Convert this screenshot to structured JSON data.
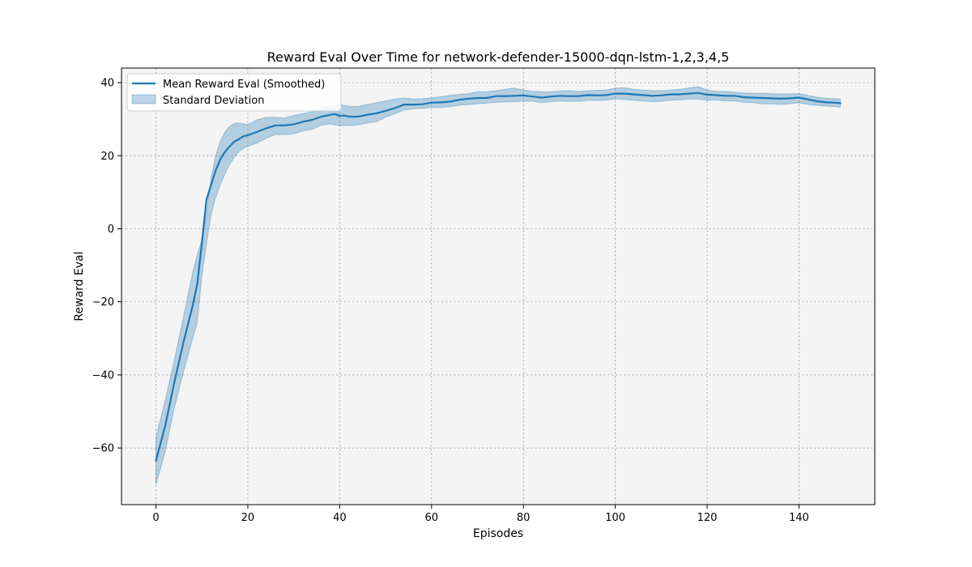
{
  "chart_data": {
    "type": "line",
    "title": "Reward Eval Over Time for network-defender-15000-dqn-lstm-1,2,3,4,5",
    "xlabel": "Episodes",
    "ylabel": "Reward Eval",
    "xlim": [
      -7.5,
      156.5
    ],
    "ylim": [
      -75.5,
      44
    ],
    "xticks": [
      0,
      20,
      40,
      60,
      80,
      100,
      120,
      140
    ],
    "yticks": [
      -60,
      -40,
      -20,
      0,
      20,
      40
    ],
    "grid": true,
    "legend_position": "top-left",
    "colors": {
      "line": "#1f77b4",
      "band": "#1f77b4",
      "plot_bg": "#f4f4f4",
      "grid": "#9a9a9a"
    },
    "series": [
      {
        "name": "Mean Reward Eval (Smoothed)",
        "kind": "line",
        "points": [
          [
            0,
            -63.5
          ],
          [
            2,
            -54
          ],
          [
            4,
            -42
          ],
          [
            6,
            -31
          ],
          [
            8,
            -21
          ],
          [
            9,
            -15
          ],
          [
            10,
            -4
          ],
          [
            11,
            8
          ],
          [
            12,
            12
          ],
          [
            13,
            16
          ],
          [
            14,
            19
          ],
          [
            15,
            21
          ],
          [
            16,
            22.5
          ],
          [
            17,
            23.8
          ],
          [
            18,
            24.5
          ],
          [
            19,
            25.3
          ],
          [
            20,
            25.6
          ],
          [
            22,
            26.5
          ],
          [
            24,
            27.5
          ],
          [
            26,
            28.3
          ],
          [
            28,
            28.3
          ],
          [
            30,
            28.6
          ],
          [
            32,
            29.3
          ],
          [
            34,
            29.8
          ],
          [
            36,
            30.7
          ],
          [
            38,
            31.2
          ],
          [
            39,
            31.4
          ],
          [
            40,
            30.9
          ],
          [
            41,
            31.0
          ],
          [
            42,
            30.7
          ],
          [
            44,
            30.7
          ],
          [
            46,
            31.2
          ],
          [
            48,
            31.6
          ],
          [
            50,
            32.3
          ],
          [
            52,
            33.0
          ],
          [
            54,
            34.0
          ],
          [
            56,
            34.0
          ],
          [
            58,
            34.1
          ],
          [
            60,
            34.5
          ],
          [
            62,
            34.6
          ],
          [
            64,
            34.8
          ],
          [
            66,
            35.3
          ],
          [
            68,
            35.6
          ],
          [
            70,
            35.8
          ],
          [
            72,
            35.8
          ],
          [
            74,
            36.3
          ],
          [
            76,
            36.3
          ],
          [
            78,
            36.4
          ],
          [
            80,
            36.5
          ],
          [
            82,
            36.2
          ],
          [
            84,
            35.9
          ],
          [
            86,
            36.2
          ],
          [
            88,
            36.4
          ],
          [
            90,
            36.3
          ],
          [
            92,
            36.3
          ],
          [
            94,
            36.6
          ],
          [
            96,
            36.5
          ],
          [
            98,
            36.6
          ],
          [
            100,
            37.0
          ],
          [
            102,
            37.0
          ],
          [
            104,
            36.8
          ],
          [
            106,
            36.6
          ],
          [
            108,
            36.4
          ],
          [
            110,
            36.5
          ],
          [
            112,
            36.8
          ],
          [
            114,
            36.8
          ],
          [
            116,
            37.0
          ],
          [
            118,
            37.2
          ],
          [
            120,
            36.7
          ],
          [
            122,
            36.6
          ],
          [
            124,
            36.4
          ],
          [
            126,
            36.4
          ],
          [
            128,
            36.0
          ],
          [
            130,
            35.9
          ],
          [
            132,
            35.8
          ],
          [
            134,
            35.7
          ],
          [
            136,
            35.6
          ],
          [
            138,
            35.7
          ],
          [
            140,
            35.9
          ],
          [
            142,
            35.4
          ],
          [
            144,
            34.9
          ],
          [
            146,
            34.6
          ],
          [
            148,
            34.5
          ],
          [
            149,
            34.4
          ]
        ]
      },
      {
        "name": "Standard Deviation",
        "kind": "band",
        "upper": [
          [
            0,
            -57
          ],
          [
            2,
            -47
          ],
          [
            4,
            -36
          ],
          [
            6,
            -24
          ],
          [
            8,
            -12
          ],
          [
            9,
            -7
          ],
          [
            10,
            -3
          ],
          [
            11,
            4
          ],
          [
            12,
            14
          ],
          [
            13,
            20
          ],
          [
            14,
            24
          ],
          [
            15,
            26.5
          ],
          [
            16,
            28
          ],
          [
            17,
            28.8
          ],
          [
            18,
            29
          ],
          [
            20,
            28.5
          ],
          [
            22,
            29.8
          ],
          [
            24,
            30.5
          ],
          [
            26,
            30.5
          ],
          [
            28,
            30.3
          ],
          [
            30,
            31
          ],
          [
            32,
            31.5
          ],
          [
            34,
            32
          ],
          [
            36,
            32.8
          ],
          [
            38,
            33.6
          ],
          [
            40,
            34
          ],
          [
            42,
            33.5
          ],
          [
            44,
            33.5
          ],
          [
            46,
            34
          ],
          [
            48,
            34.5
          ],
          [
            50,
            35
          ],
          [
            52,
            35.5
          ],
          [
            54,
            35.8
          ],
          [
            56,
            35.5
          ],
          [
            58,
            35.6
          ],
          [
            60,
            35.8
          ],
          [
            62,
            36.2
          ],
          [
            64,
            36.5
          ],
          [
            66,
            36.8
          ],
          [
            68,
            37
          ],
          [
            70,
            37.5
          ],
          [
            72,
            37.5
          ],
          [
            74,
            37.8
          ],
          [
            76,
            38.2
          ],
          [
            78,
            38.5
          ],
          [
            80,
            38
          ],
          [
            82,
            37.6
          ],
          [
            84,
            37.5
          ],
          [
            86,
            37.5
          ],
          [
            88,
            37.7
          ],
          [
            90,
            37.8
          ],
          [
            92,
            37.6
          ],
          [
            94,
            37.8
          ],
          [
            96,
            37.9
          ],
          [
            98,
            38
          ],
          [
            100,
            38.5
          ],
          [
            102,
            38.6
          ],
          [
            104,
            38.2
          ],
          [
            106,
            38
          ],
          [
            108,
            37.8
          ],
          [
            110,
            37.8
          ],
          [
            112,
            38
          ],
          [
            114,
            38.2
          ],
          [
            116,
            38.5
          ],
          [
            118,
            38.9
          ],
          [
            120,
            38
          ],
          [
            122,
            37.6
          ],
          [
            124,
            37.6
          ],
          [
            126,
            37.4
          ],
          [
            128,
            37.2
          ],
          [
            130,
            37.1
          ],
          [
            132,
            37.1
          ],
          [
            134,
            37
          ],
          [
            136,
            36.9
          ],
          [
            138,
            36.9
          ],
          [
            140,
            37
          ],
          [
            142,
            36.5
          ],
          [
            144,
            36
          ],
          [
            146,
            35.7
          ],
          [
            148,
            35.6
          ],
          [
            149,
            35.5
          ]
        ],
        "lower": [
          [
            0,
            -70
          ],
          [
            2,
            -61
          ],
          [
            4,
            -49
          ],
          [
            6,
            -39
          ],
          [
            8,
            -30
          ],
          [
            9,
            -25.5
          ],
          [
            10,
            -13
          ],
          [
            11,
            -4
          ],
          [
            12,
            4
          ],
          [
            13,
            8.5
          ],
          [
            14,
            12
          ],
          [
            15,
            15
          ],
          [
            16,
            17.5
          ],
          [
            17,
            19.5
          ],
          [
            18,
            21
          ],
          [
            19,
            22
          ],
          [
            20,
            22.6
          ],
          [
            22,
            23.5
          ],
          [
            24,
            24.8
          ],
          [
            26,
            25.8
          ],
          [
            28,
            25.8
          ],
          [
            30,
            26
          ],
          [
            32,
            26.8
          ],
          [
            34,
            27.2
          ],
          [
            36,
            28.4
          ],
          [
            38,
            28.7
          ],
          [
            40,
            28.2
          ],
          [
            42,
            28.3
          ],
          [
            44,
            28.4
          ],
          [
            46,
            29
          ],
          [
            48,
            29.3
          ],
          [
            50,
            30.5
          ],
          [
            52,
            31.5
          ],
          [
            54,
            32.5
          ],
          [
            56,
            32.8
          ],
          [
            58,
            33
          ],
          [
            60,
            33.2
          ],
          [
            62,
            33.2
          ],
          [
            64,
            33.4
          ],
          [
            66,
            33.8
          ],
          [
            68,
            34
          ],
          [
            70,
            34.2
          ],
          [
            72,
            34.4
          ],
          [
            74,
            34.6
          ],
          [
            76,
            34.7
          ],
          [
            78,
            34.8
          ],
          [
            80,
            35
          ],
          [
            82,
            34.9
          ],
          [
            84,
            34.5
          ],
          [
            86,
            34.8
          ],
          [
            88,
            35
          ],
          [
            90,
            34.9
          ],
          [
            92,
            34.9
          ],
          [
            94,
            35.2
          ],
          [
            96,
            35.1
          ],
          [
            98,
            35.2
          ],
          [
            100,
            35.5
          ],
          [
            102,
            35.4
          ],
          [
            104,
            35.2
          ],
          [
            106,
            35
          ],
          [
            108,
            34.8
          ],
          [
            110,
            34.9
          ],
          [
            112,
            35.2
          ],
          [
            114,
            35.3
          ],
          [
            116,
            35.5
          ],
          [
            118,
            35.5
          ],
          [
            120,
            35.2
          ],
          [
            122,
            35.3
          ],
          [
            124,
            35
          ],
          [
            126,
            35
          ],
          [
            128,
            34.6
          ],
          [
            130,
            34.5
          ],
          [
            132,
            34.2
          ],
          [
            134,
            34.2
          ],
          [
            136,
            34.1
          ],
          [
            138,
            34.2
          ],
          [
            140,
            34.5
          ],
          [
            142,
            34
          ],
          [
            144,
            33.8
          ],
          [
            146,
            33.6
          ],
          [
            148,
            33.4
          ],
          [
            149,
            33.3
          ]
        ]
      }
    ]
  }
}
